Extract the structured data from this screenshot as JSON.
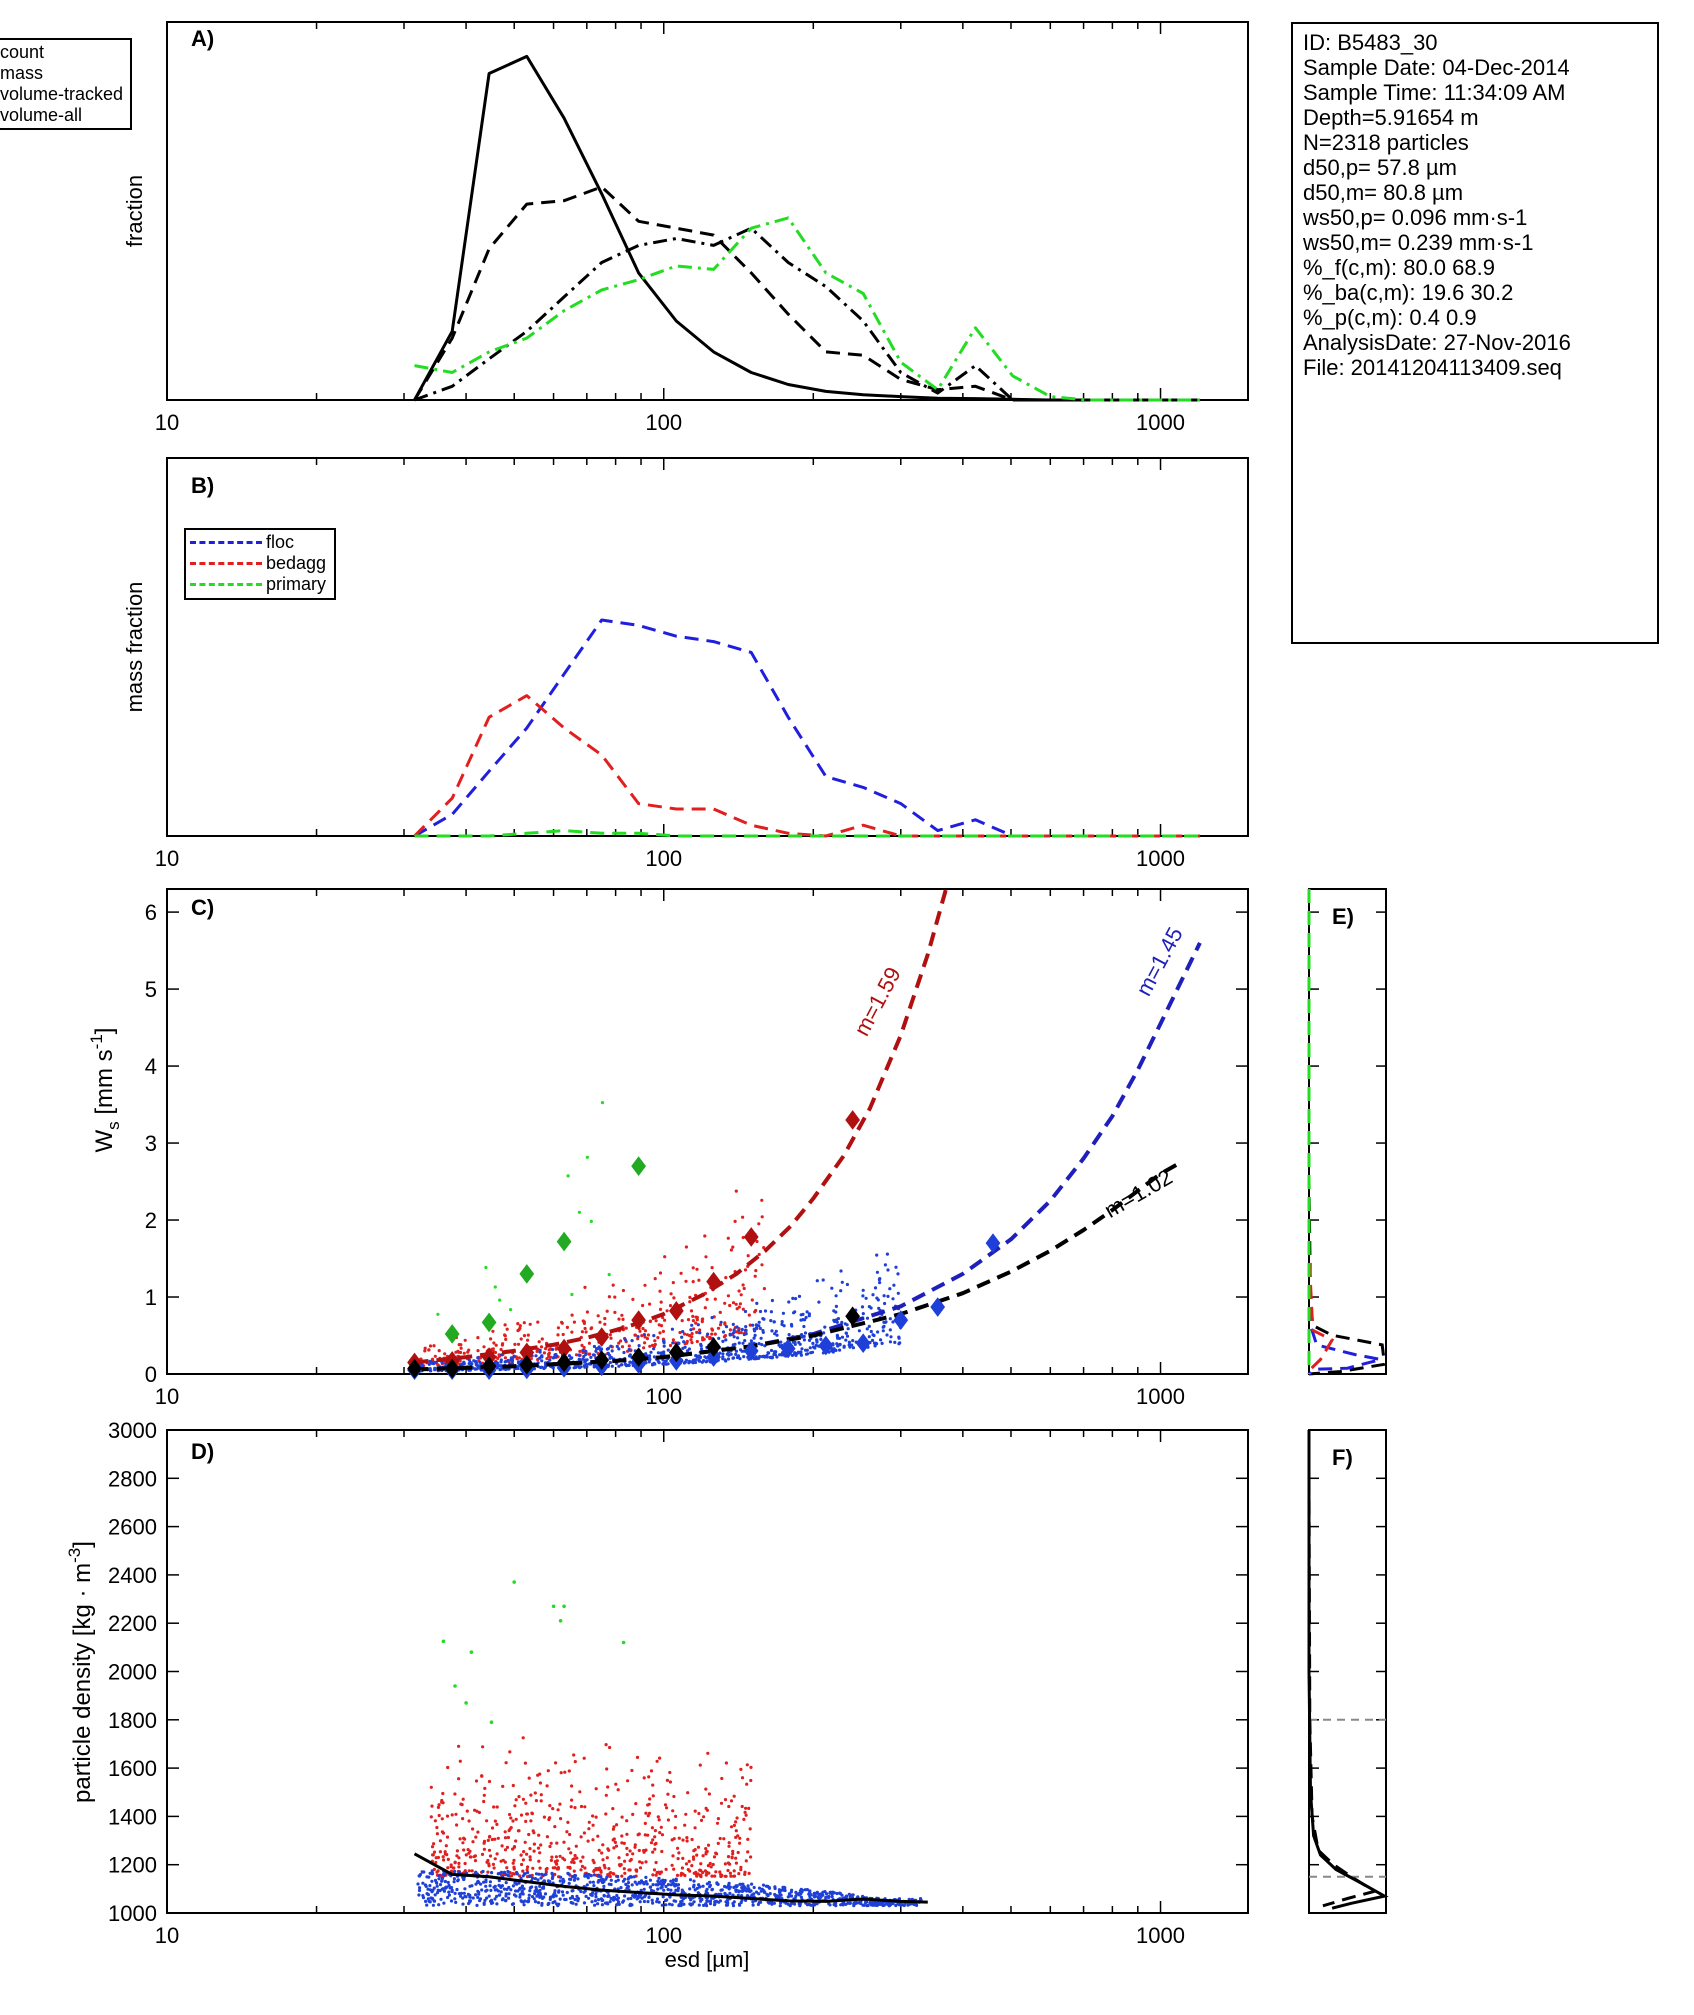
{
  "chart_data": [
    {
      "panel": "A)",
      "type": "line",
      "ylabel": "fraction",
      "xscale": "log",
      "xlim": [
        10,
        1500
      ],
      "xticks": [
        "10",
        "100",
        "1000"
      ],
      "legend": [
        "count",
        "mass",
        "volume-tracked",
        "volume-all"
      ],
      "legend_placement": "top-left",
      "series": [
        {
          "name": "count",
          "style": "solid",
          "color": "#000000",
          "x": [
            31.5,
            37.5,
            44.5,
            53,
            63,
            75,
            89,
            106,
            126,
            150,
            178,
            212,
            252,
            300,
            356,
            424,
            504,
            600,
            713,
            848,
            1009,
            1200
          ],
          "y": [
            0.0,
            0.2,
            0.95,
            1.0,
            0.82,
            0.6,
            0.37,
            0.23,
            0.14,
            0.08,
            0.045,
            0.025,
            0.015,
            0.01,
            0.005,
            0.004,
            0.002,
            0,
            0,
            0,
            0,
            0
          ]
        },
        {
          "name": "mass",
          "style": "dashed",
          "color": "#000000",
          "x": [
            31.5,
            37.5,
            44.5,
            53,
            63,
            75,
            89,
            106,
            126,
            150,
            178,
            212,
            252,
            300,
            356,
            424,
            504,
            600
          ],
          "y": [
            0.0,
            0.18,
            0.44,
            0.57,
            0.58,
            0.62,
            0.52,
            0.5,
            0.48,
            0.37,
            0.25,
            0.14,
            0.13,
            0.06,
            0.03,
            0.04,
            0.0,
            0.0
          ]
        },
        {
          "name": "volume-tracked",
          "style": "dashdot",
          "color": "#000000",
          "x": [
            31.5,
            37.5,
            44.5,
            53,
            63,
            75,
            89,
            106,
            126,
            150,
            178,
            212,
            252,
            300,
            356,
            424,
            504,
            600
          ],
          "y": [
            0.0,
            0.04,
            0.12,
            0.2,
            0.3,
            0.4,
            0.45,
            0.47,
            0.45,
            0.5,
            0.4,
            0.33,
            0.23,
            0.08,
            0.02,
            0.1,
            0.0,
            0.0
          ]
        },
        {
          "name": "volume-all",
          "style": "dashdot",
          "color": "#22dd22",
          "x": [
            31.5,
            37.5,
            44.5,
            53,
            63,
            75,
            89,
            106,
            126,
            150,
            178,
            212,
            252,
            300,
            356,
            424,
            504,
            600,
            713,
            848,
            1009,
            1200
          ],
          "y": [
            0.1,
            0.08,
            0.14,
            0.18,
            0.26,
            0.32,
            0.35,
            0.39,
            0.38,
            0.5,
            0.53,
            0.37,
            0.31,
            0.11,
            0.03,
            0.21,
            0.07,
            0.01,
            0,
            0,
            0,
            0
          ]
        }
      ]
    },
    {
      "panel": "B)",
      "type": "line",
      "ylabel": "mass fraction",
      "xscale": "log",
      "xlim": [
        10,
        1500
      ],
      "xticks": [
        "10",
        "100",
        "1000"
      ],
      "legend": [
        "floc",
        "bedagg",
        "primary"
      ],
      "legend_placement": "top-left",
      "series": [
        {
          "name": "floc",
          "style": "dashed",
          "color": "#1f1fdd",
          "x": [
            31.5,
            37.5,
            44.5,
            53,
            63,
            75,
            89,
            106,
            126,
            150,
            178,
            212,
            252,
            300,
            356,
            424,
            504,
            600,
            713,
            848,
            1009,
            1200
          ],
          "y": [
            0.0,
            0.04,
            0.12,
            0.2,
            0.3,
            0.4,
            0.39,
            0.37,
            0.36,
            0.34,
            0.22,
            0.11,
            0.09,
            0.06,
            0.01,
            0.03,
            0.0,
            0.0,
            0,
            0,
            0,
            0
          ]
        },
        {
          "name": "bedagg",
          "style": "dashed",
          "color": "#e21f1f",
          "x": [
            31.5,
            37.5,
            44.5,
            53,
            63,
            75,
            89,
            106,
            126,
            150,
            178,
            212,
            252,
            300,
            356,
            424,
            504,
            600,
            713,
            848,
            1009,
            1200
          ],
          "y": [
            0.0,
            0.07,
            0.22,
            0.26,
            0.2,
            0.15,
            0.06,
            0.05,
            0.05,
            0.02,
            0.005,
            0.0,
            0.02,
            0.0,
            0,
            0,
            0,
            0,
            0,
            0,
            0,
            0
          ]
        },
        {
          "name": "primary",
          "style": "dashed",
          "color": "#22dd22",
          "x": [
            31.5,
            37.5,
            44.5,
            53,
            63,
            75,
            89,
            106,
            126,
            150,
            178,
            212,
            252,
            300,
            356,
            424,
            504,
            600,
            713,
            848,
            1009,
            1200
          ],
          "y": [
            0.0,
            0.0,
            0.0,
            0.005,
            0.01,
            0.005,
            0.005,
            0,
            0,
            0,
            0,
            0,
            0,
            0,
            0,
            0,
            0,
            0,
            0,
            0,
            0,
            0
          ]
        }
      ]
    },
    {
      "panel": "C)",
      "type": "scatter",
      "ylabel": "W_s [mm s^-1]",
      "xscale": "log",
      "xlim": [
        10,
        1500
      ],
      "ylim": [
        0,
        6.3
      ],
      "xticks": [
        "10",
        "100",
        "1000"
      ],
      "yticks": [
        "0",
        "1",
        "2",
        "3",
        "4",
        "5",
        "6"
      ],
      "fits": [
        {
          "label": "m=1.59",
          "color": "#b01010",
          "x": [
            31.5,
            40,
            50,
            60,
            70,
            80,
            90,
            100,
            120,
            140,
            160,
            180,
            200,
            230,
            260,
            300,
            340,
            370
          ],
          "y": [
            0.15,
            0.22,
            0.3,
            0.38,
            0.47,
            0.57,
            0.67,
            0.78,
            1.03,
            1.3,
            1.6,
            1.92,
            2.28,
            2.83,
            3.45,
            4.4,
            5.45,
            6.3
          ]
        },
        {
          "label": "m=1.45",
          "color": "#1f1fbb",
          "x": [
            31.5,
            50,
            80,
            100,
            150,
            200,
            300,
            400,
            500,
            600,
            700,
            800,
            900,
            1000,
            1100,
            1200
          ],
          "y": [
            0.06,
            0.1,
            0.17,
            0.22,
            0.36,
            0.52,
            0.88,
            1.3,
            1.75,
            2.25,
            2.8,
            3.35,
            3.95,
            4.55,
            5.1,
            5.6
          ]
        },
        {
          "label": "m=1.02",
          "color": "#000000",
          "x": [
            31.5,
            50,
            80,
            100,
            150,
            200,
            300,
            400,
            500,
            600,
            700,
            800,
            900,
            1000,
            1100
          ],
          "y": [
            0.06,
            0.1,
            0.17,
            0.22,
            0.36,
            0.5,
            0.78,
            1.05,
            1.33,
            1.6,
            1.87,
            2.13,
            2.38,
            2.6,
            2.75
          ]
        }
      ],
      "medians": [
        {
          "name": "floc",
          "color": "#1f40d8",
          "x": [
            31.5,
            37.5,
            44.5,
            53,
            63,
            75,
            89,
            106,
            126,
            150,
            178,
            212,
            252,
            300,
            356,
            460
          ],
          "y": [
            0.05,
            0.05,
            0.05,
            0.06,
            0.08,
            0.1,
            0.13,
            0.17,
            0.22,
            0.3,
            0.33,
            0.37,
            0.4,
            0.7,
            0.87,
            1.7
          ]
        },
        {
          "name": "bedagg",
          "color": "#b01010",
          "x": [
            31.5,
            37.5,
            44.5,
            53,
            63,
            75,
            89,
            106,
            126,
            150,
            240
          ],
          "y": [
            0.15,
            0.17,
            0.22,
            0.28,
            0.33,
            0.48,
            0.7,
            0.82,
            1.2,
            1.78,
            3.3
          ]
        },
        {
          "name": "primary",
          "color": "#22aa22",
          "x": [
            37.5,
            44.5,
            53,
            63,
            89
          ],
          "y": [
            0.52,
            0.67,
            1.3,
            1.72,
            2.7
          ]
        },
        {
          "name": "all",
          "color": "#000000",
          "x": [
            31.5,
            37.5,
            44.5,
            53,
            63,
            75,
            89,
            106,
            126,
            240
          ],
          "y": [
            0.07,
            0.07,
            0.1,
            0.12,
            0.15,
            0.18,
            0.22,
            0.28,
            0.35,
            0.75
          ]
        }
      ]
    },
    {
      "panel": "D)",
      "type": "scatter",
      "xlabel": "esd [µm]",
      "ylabel": "particle density [kg · m^-3]",
      "xscale": "log",
      "xlim": [
        10,
        1500
      ],
      "ylim": [
        1000,
        3000
      ],
      "xticks": [
        "10",
        "100",
        "1000"
      ],
      "yticks": [
        "1000",
        "1200",
        "1400",
        "1600",
        "1800",
        "2000",
        "2200",
        "2400",
        "2600",
        "2800",
        "3000"
      ],
      "median_line": {
        "color": "#000000",
        "x": [
          31.5,
          37.5,
          44.5,
          53,
          63,
          75,
          89,
          106,
          126,
          150,
          178,
          212,
          252,
          300,
          340
        ],
        "y": [
          1245,
          1160,
          1150,
          1130,
          1110,
          1095,
          1085,
          1075,
          1070,
          1060,
          1050,
          1048,
          1058,
          1048,
          1045
        ]
      }
    },
    {
      "panel": "E)",
      "type": "line",
      "note": "marginal distribution of W_s, rotated",
      "series": [
        {
          "name": "all",
          "color": "#000000"
        },
        {
          "name": "floc",
          "color": "#1f1fdd"
        },
        {
          "name": "bedagg",
          "color": "#e21f1f"
        },
        {
          "name": "primary",
          "color": "#22dd22"
        }
      ]
    },
    {
      "panel": "F)",
      "type": "line",
      "note": "marginal distribution of particle density, rotated",
      "reference_lines": [
        1800,
        1150
      ]
    }
  ],
  "info": {
    "lines": [
      "ID: B5483_30",
      "Sample Date: 04-Dec-2014",
      "Sample Time: 11:34:09 AM",
      "Depth=5.91654 m",
      "N=2318 particles",
      "d50,p= 57.8 µm",
      "d50,m= 80.8 µm",
      "ws50,p= 0.096 mm·s-1",
      "ws50,m= 0.239 mm·s-1",
      "%_f(c,m): 80.0 68.9",
      "%_ba(c,m): 19.6 30.2",
      "%_p(c,m): 0.4 0.9",
      "AnalysisDate: 27-Nov-2016",
      "File: 20141204113409.seq"
    ]
  },
  "colors": {
    "floc": "#1f1fdd",
    "bedagg": "#e21f1f",
    "primary": "#22dd22",
    "axis": "#000000"
  }
}
